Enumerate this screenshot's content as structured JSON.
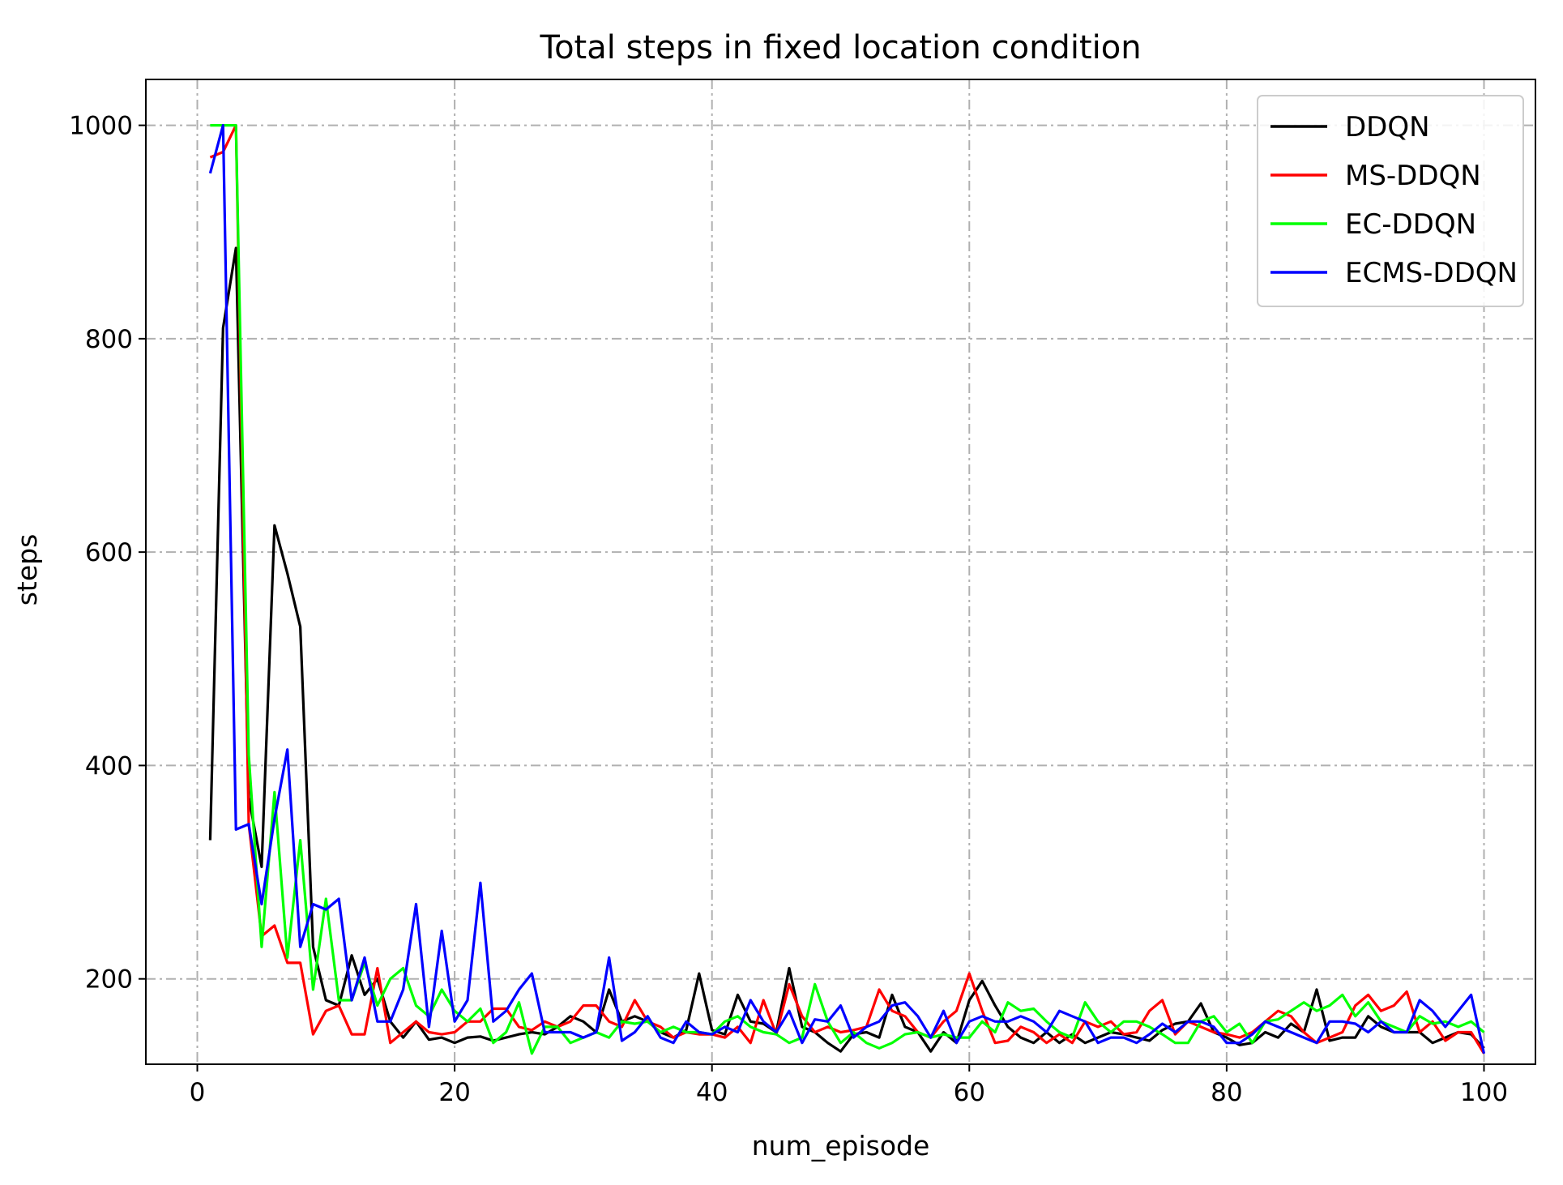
{
  "chart_data": {
    "type": "line",
    "title": "Total steps in fixed location condition",
    "xlabel": "num_episode",
    "ylabel": "steps",
    "xlim": [
      -4,
      104
    ],
    "ylim": [
      120,
      1043
    ],
    "xticks": [
      0,
      20,
      40,
      60,
      80,
      100
    ],
    "yticks": [
      200,
      400,
      600,
      800,
      1000
    ],
    "xtick_labels": [
      "0",
      "20",
      "40",
      "60",
      "80",
      "100"
    ],
    "ytick_labels": [
      "200",
      "400",
      "600",
      "800",
      "1000"
    ],
    "grid": true,
    "legend_position": "top-right",
    "x": [
      1,
      2,
      3,
      4,
      5,
      6,
      7,
      8,
      9,
      10,
      11,
      12,
      13,
      14,
      15,
      16,
      17,
      18,
      19,
      20,
      21,
      22,
      23,
      24,
      25,
      26,
      27,
      28,
      29,
      30,
      31,
      32,
      33,
      34,
      35,
      36,
      37,
      38,
      39,
      40,
      41,
      42,
      43,
      44,
      45,
      46,
      47,
      48,
      49,
      50,
      51,
      52,
      53,
      54,
      55,
      56,
      57,
      58,
      59,
      60,
      61,
      62,
      63,
      64,
      65,
      66,
      67,
      68,
      69,
      70,
      71,
      72,
      73,
      74,
      75,
      76,
      77,
      78,
      79,
      80,
      81,
      82,
      83,
      84,
      85,
      86,
      87,
      88,
      89,
      90,
      91,
      92,
      93,
      94,
      95,
      96,
      97,
      98,
      99,
      100
    ],
    "series": [
      {
        "name": "DDQN",
        "color": "#000000",
        "values": [
          330,
          810,
          885,
          370,
          305,
          625,
          580,
          530,
          230,
          180,
          175,
          222,
          185,
          200,
          160,
          145,
          160,
          143,
          145,
          140,
          145,
          146,
          142,
          145,
          148,
          150,
          148,
          155,
          165,
          160,
          150,
          190,
          160,
          165,
          160,
          150,
          145,
          152,
          205,
          152,
          148,
          185,
          160,
          158,
          150,
          210,
          155,
          150,
          140,
          132,
          148,
          150,
          145,
          185,
          155,
          150,
          132,
          150,
          140,
          180,
          198,
          175,
          155,
          145,
          140,
          150,
          140,
          148,
          140,
          145,
          150,
          148,
          145,
          142,
          152,
          158,
          160,
          177,
          150,
          145,
          138,
          140,
          150,
          145,
          158,
          150,
          190,
          142,
          145,
          145,
          165,
          155,
          150,
          150,
          150,
          140,
          145,
          150,
          148,
          135
        ]
      },
      {
        "name": "MS-DDQN",
        "color": "#ff0000",
        "values": [
          970,
          975,
          1000,
          345,
          240,
          250,
          215,
          215,
          148,
          170,
          175,
          148,
          148,
          210,
          140,
          150,
          160,
          150,
          148,
          150,
          160,
          160,
          172,
          172,
          155,
          152,
          160,
          155,
          160,
          175,
          175,
          160,
          155,
          180,
          160,
          155,
          145,
          150,
          148,
          148,
          145,
          155,
          140,
          180,
          148,
          195,
          165,
          150,
          155,
          150,
          152,
          155,
          190,
          170,
          165,
          150,
          145,
          160,
          170,
          205,
          170,
          140,
          142,
          155,
          150,
          140,
          148,
          140,
          160,
          155,
          160,
          148,
          150,
          170,
          180,
          148,
          160,
          155,
          150,
          148,
          145,
          150,
          160,
          170,
          165,
          150,
          140,
          145,
          150,
          175,
          185,
          170,
          175,
          188,
          150,
          160,
          142,
          150,
          150,
          130
        ]
      },
      {
        "name": "EC-DDQN",
        "color": "#00ff00",
        "values": [
          1000,
          1000,
          1000,
          410,
          230,
          375,
          220,
          330,
          190,
          275,
          180,
          180,
          215,
          175,
          200,
          210,
          175,
          165,
          190,
          170,
          160,
          172,
          140,
          150,
          178,
          130,
          155,
          155,
          140,
          145,
          150,
          145,
          160,
          158,
          160,
          150,
          155,
          150,
          150,
          148,
          160,
          165,
          155,
          150,
          148,
          140,
          145,
          195,
          160,
          140,
          150,
          140,
          135,
          140,
          148,
          150,
          145,
          148,
          145,
          145,
          160,
          150,
          178,
          170,
          172,
          160,
          150,
          145,
          178,
          160,
          150,
          160,
          160,
          155,
          148,
          140,
          140,
          160,
          165,
          150,
          158,
          140,
          160,
          162,
          170,
          178,
          170,
          175,
          185,
          165,
          178,
          160,
          155,
          150,
          165,
          158,
          160,
          155,
          160,
          150
        ]
      },
      {
        "name": "ECMS-DDQN",
        "color": "#0000ff",
        "values": [
          955,
          1000,
          340,
          345,
          270,
          350,
          415,
          230,
          270,
          265,
          275,
          180,
          220,
          160,
          160,
          190,
          270,
          155,
          245,
          160,
          180,
          290,
          160,
          170,
          190,
          205,
          150,
          150,
          150,
          145,
          150,
          220,
          142,
          150,
          165,
          145,
          140,
          160,
          150,
          148,
          155,
          150,
          180,
          160,
          150,
          170,
          140,
          162,
          160,
          175,
          145,
          155,
          160,
          175,
          178,
          165,
          145,
          170,
          140,
          160,
          165,
          160,
          160,
          165,
          160,
          150,
          170,
          165,
          160,
          140,
          145,
          145,
          140,
          148,
          158,
          150,
          160,
          160,
          155,
          140,
          140,
          148,
          160,
          155,
          150,
          145,
          140,
          160,
          160,
          158,
          150,
          160,
          150,
          150,
          180,
          170,
          155,
          170,
          185,
          130
        ]
      }
    ]
  }
}
